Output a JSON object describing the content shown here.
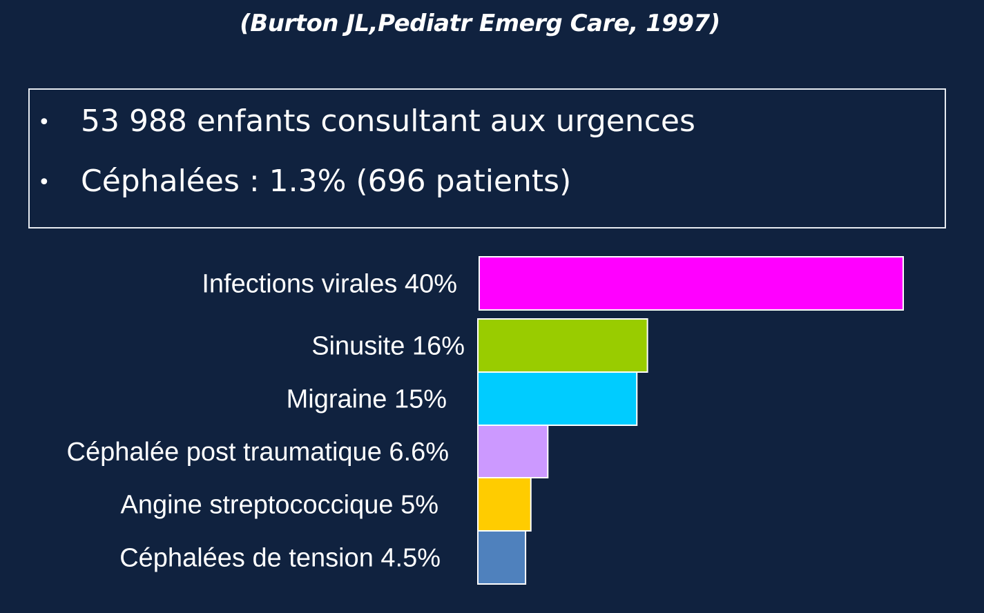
{
  "header": {
    "subtitle": "(Burton JL,Pediatr Emerg Care, 1997)"
  },
  "info_box": {
    "bullets": [
      "53 988 enfants consultant aux urgences",
      "Céphalées : 1.3% (696 patients)"
    ]
  },
  "chart_data": {
    "type": "bar",
    "orientation": "horizontal",
    "categories": [
      "Infections virales 40%",
      "Sinusite 16%",
      "Migraine 15%",
      "Céphalée post traumatique 6.6%",
      "Angine streptococcique 5%",
      "Céphalées de tension 4.5%"
    ],
    "values": [
      40,
      16,
      15,
      6.6,
      5,
      4.5
    ],
    "colors": [
      "#ff00ff",
      "#99cc00",
      "#00ccff",
      "#cc99ff",
      "#ffcc00",
      "#4f81bd"
    ],
    "title": "",
    "xlabel": "",
    "ylabel": "",
    "grid": false
  }
}
